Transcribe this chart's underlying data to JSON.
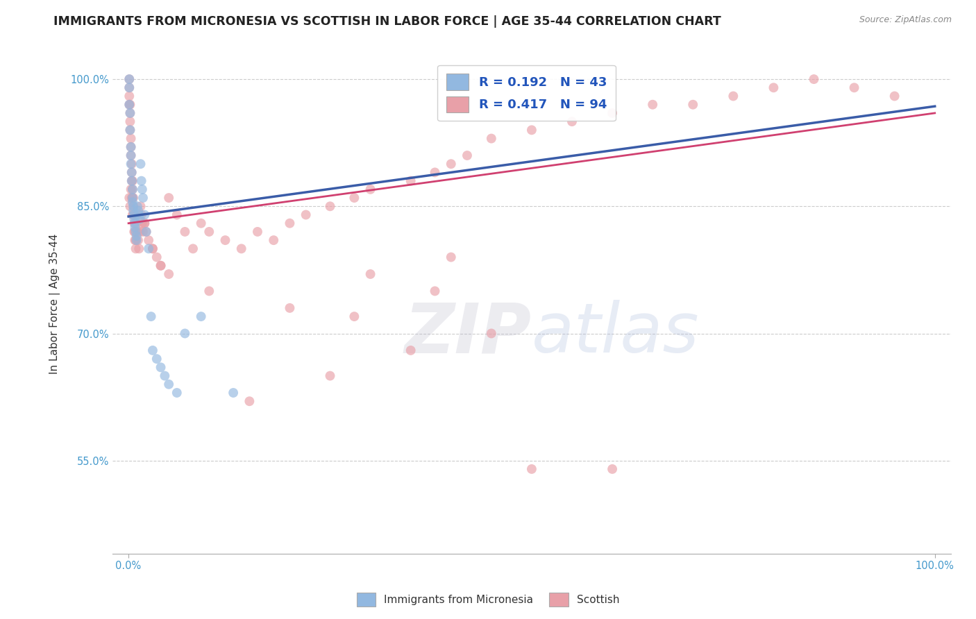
{
  "title": "IMMIGRANTS FROM MICRONESIA VS SCOTTISH IN LABOR FORCE | AGE 35-44 CORRELATION CHART",
  "source_text": "Source: ZipAtlas.com",
  "ylabel": "In Labor Force | Age 35-44",
  "xlim": [
    -0.02,
    1.02
  ],
  "ylim": [
    0.44,
    1.03
  ],
  "blue_color": "#92b8e0",
  "pink_color": "#e8a0a8",
  "blue_line_color": "#3a5ca8",
  "pink_line_color": "#d04070",
  "R_blue": 0.192,
  "N_blue": 43,
  "R_pink": 0.417,
  "N_pink": 94,
  "legend_label_blue": "Immigrants from Micronesia",
  "legend_label_pink": "Scottish",
  "watermark_zip": "ZIP",
  "watermark_atlas": "atlas",
  "title_fontsize": 12.5,
  "axis_label_fontsize": 11,
  "tick_fontsize": 10.5,
  "blue_line_x0": 0.0,
  "blue_line_y0": 0.838,
  "blue_line_x1": 1.0,
  "blue_line_y1": 0.968,
  "pink_line_x0": 0.0,
  "pink_line_y0": 0.83,
  "pink_line_x1": 1.0,
  "pink_line_y1": 0.96,
  "blue_scatter_x": [
    0.001,
    0.001,
    0.001,
    0.002,
    0.002,
    0.003,
    0.003,
    0.003,
    0.004,
    0.004,
    0.005,
    0.005,
    0.005,
    0.006,
    0.006,
    0.007,
    0.007,
    0.008,
    0.008,
    0.009,
    0.01,
    0.01,
    0.011,
    0.012,
    0.013,
    0.014,
    0.015,
    0.016,
    0.017,
    0.018,
    0.02,
    0.022,
    0.025,
    0.028,
    0.03,
    0.035,
    0.04,
    0.045,
    0.05,
    0.06,
    0.07,
    0.09,
    0.13
  ],
  "blue_scatter_y": [
    1.0,
    0.99,
    0.97,
    0.96,
    0.94,
    0.92,
    0.91,
    0.9,
    0.89,
    0.88,
    0.87,
    0.86,
    0.855,
    0.85,
    0.845,
    0.84,
    0.835,
    0.83,
    0.825,
    0.82,
    0.815,
    0.81,
    0.85,
    0.845,
    0.84,
    0.835,
    0.9,
    0.88,
    0.87,
    0.86,
    0.84,
    0.82,
    0.8,
    0.72,
    0.68,
    0.67,
    0.66,
    0.65,
    0.64,
    0.63,
    0.7,
    0.72,
    0.63
  ],
  "pink_scatter_x": [
    0.001,
    0.001,
    0.001,
    0.001,
    0.002,
    0.002,
    0.002,
    0.002,
    0.003,
    0.003,
    0.003,
    0.004,
    0.004,
    0.004,
    0.005,
    0.005,
    0.005,
    0.006,
    0.006,
    0.006,
    0.007,
    0.007,
    0.007,
    0.008,
    0.008,
    0.009,
    0.009,
    0.01,
    0.01,
    0.011,
    0.012,
    0.013,
    0.014,
    0.015,
    0.016,
    0.017,
    0.018,
    0.02,
    0.022,
    0.025,
    0.03,
    0.035,
    0.04,
    0.05,
    0.06,
    0.07,
    0.08,
    0.09,
    0.1,
    0.12,
    0.14,
    0.16,
    0.18,
    0.2,
    0.22,
    0.25,
    0.28,
    0.3,
    0.35,
    0.38,
    0.4,
    0.42,
    0.45,
    0.5,
    0.55,
    0.6,
    0.65,
    0.7,
    0.75,
    0.8,
    0.85,
    0.9,
    0.95,
    0.001,
    0.002,
    0.003,
    0.004,
    0.005,
    0.02,
    0.03,
    0.04,
    0.05,
    0.1,
    0.2,
    0.3,
    0.4,
    0.15,
    0.25,
    0.35,
    0.45,
    0.5,
    0.6,
    0.28,
    0.38
  ],
  "pink_scatter_y": [
    1.0,
    0.99,
    0.98,
    0.97,
    0.97,
    0.96,
    0.95,
    0.94,
    0.93,
    0.92,
    0.91,
    0.9,
    0.89,
    0.88,
    0.88,
    0.87,
    0.86,
    0.86,
    0.85,
    0.84,
    0.84,
    0.83,
    0.82,
    0.82,
    0.81,
    0.81,
    0.8,
    0.84,
    0.83,
    0.82,
    0.81,
    0.8,
    0.82,
    0.85,
    0.84,
    0.83,
    0.82,
    0.83,
    0.82,
    0.81,
    0.8,
    0.79,
    0.78,
    0.86,
    0.84,
    0.82,
    0.8,
    0.83,
    0.82,
    0.81,
    0.8,
    0.82,
    0.81,
    0.83,
    0.84,
    0.85,
    0.86,
    0.87,
    0.88,
    0.89,
    0.9,
    0.91,
    0.93,
    0.94,
    0.95,
    0.96,
    0.97,
    0.97,
    0.98,
    0.99,
    1.0,
    0.99,
    0.98,
    0.86,
    0.85,
    0.87,
    0.86,
    0.84,
    0.83,
    0.8,
    0.78,
    0.77,
    0.75,
    0.73,
    0.77,
    0.79,
    0.62,
    0.65,
    0.68,
    0.7,
    0.54,
    0.54,
    0.72,
    0.75
  ]
}
